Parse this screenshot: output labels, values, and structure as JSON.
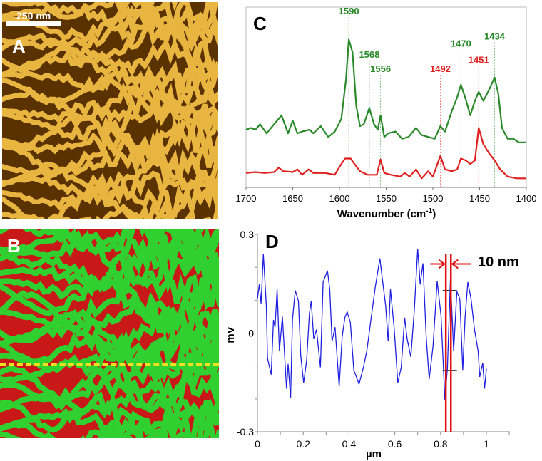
{
  "panel_a": {
    "label": "A",
    "scale_bar": "250 nm"
  },
  "panel_b": {
    "label": "B"
  },
  "colors": {
    "afm_dark": "#3a1f00",
    "afm_light": "#f5d27a",
    "map_red": "#d01818",
    "map_green": "#30d030",
    "dash": "#f0e020",
    "green_series": "#2a8a2a",
    "red_series": "#e02020",
    "profile": "#2020e0"
  },
  "chart_data": [
    {
      "panel": "C",
      "type": "line",
      "xlabel": "Wavenumber (cm-1)",
      "xlabel_base": "Wavenumber (cm",
      "xlabel_sup": "-1",
      "xlabel_end": ")",
      "xlim": [
        1700,
        1400
      ],
      "ylim": [
        0,
        1
      ],
      "xticks": [
        1700,
        1650,
        1600,
        1550,
        1500,
        1450,
        1400
      ],
      "series": [
        {
          "name": "green",
          "color": "#2a8a2a",
          "x": [
            1700,
            1695,
            1690,
            1685,
            1678,
            1670,
            1662,
            1655,
            1650,
            1645,
            1640,
            1632,
            1628,
            1620,
            1612,
            1605,
            1598,
            1593,
            1590,
            1586,
            1582,
            1578,
            1574,
            1568,
            1563,
            1559,
            1556,
            1552,
            1548,
            1540,
            1533,
            1526,
            1518,
            1512,
            1505,
            1498,
            1492,
            1487,
            1480,
            1474,
            1470,
            1465,
            1460,
            1455,
            1451,
            1446,
            1440,
            1434,
            1430,
            1426,
            1420,
            1414,
            1408,
            1400
          ],
          "y": [
            0.32,
            0.33,
            0.32,
            0.35,
            0.3,
            0.35,
            0.4,
            0.3,
            0.37,
            0.3,
            0.31,
            0.32,
            0.3,
            0.34,
            0.28,
            0.31,
            0.38,
            0.6,
            0.82,
            0.75,
            0.45,
            0.34,
            0.35,
            0.44,
            0.35,
            0.32,
            0.4,
            0.28,
            0.3,
            0.31,
            0.27,
            0.28,
            0.33,
            0.29,
            0.28,
            0.27,
            0.34,
            0.31,
            0.42,
            0.5,
            0.57,
            0.49,
            0.4,
            0.48,
            0.53,
            0.48,
            0.54,
            0.61,
            0.52,
            0.33,
            0.27,
            0.27,
            0.25,
            0.25
          ]
        },
        {
          "name": "red",
          "color": "#e02020",
          "x": [
            1700,
            1690,
            1680,
            1670,
            1665,
            1660,
            1650,
            1645,
            1640,
            1633,
            1628,
            1615,
            1605,
            1598,
            1594,
            1588,
            1584,
            1578,
            1570,
            1560,
            1556,
            1552,
            1545,
            1535,
            1530,
            1525,
            1518,
            1512,
            1505,
            1500,
            1492,
            1487,
            1480,
            1474,
            1470,
            1465,
            1460,
            1455,
            1451,
            1446,
            1440,
            1434,
            1428,
            1420,
            1410,
            1400
          ],
          "y": [
            0.08,
            0.085,
            0.08,
            0.085,
            0.11,
            0.09,
            0.085,
            0.1,
            0.07,
            0.1,
            0.08,
            0.08,
            0.07,
            0.13,
            0.16,
            0.16,
            0.13,
            0.09,
            0.07,
            0.07,
            0.155,
            0.08,
            0.07,
            0.06,
            0.08,
            0.06,
            0.1,
            0.05,
            0.09,
            0.06,
            0.175,
            0.1,
            0.09,
            0.1,
            0.16,
            0.15,
            0.13,
            0.15,
            0.33,
            0.24,
            0.19,
            0.15,
            0.1,
            0.06,
            0.05,
            0.05
          ]
        }
      ],
      "annotations": [
        {
          "text": "1590",
          "x": 1590,
          "color": "#2a8a2a",
          "level": 0.96
        },
        {
          "text": "1568",
          "x": 1568,
          "color": "#2a8a2a",
          "level": 0.72
        },
        {
          "text": "1556",
          "x": 1556,
          "color": "#2a8a2a",
          "level": 0.64
        },
        {
          "text": "1492",
          "x": 1492,
          "color": "#e02020",
          "level": 0.64
        },
        {
          "text": "1470",
          "x": 1470,
          "color": "#2a8a2a",
          "level": 0.78
        },
        {
          "text": "1451",
          "x": 1451,
          "color": "#e02020",
          "level": 0.69
        },
        {
          "text": "1434",
          "x": 1434,
          "color": "#2a8a2a",
          "level": 0.82
        }
      ]
    },
    {
      "panel": "D",
      "type": "line",
      "xlabel": "µm",
      "ylabel": "mV",
      "xlim": [
        0,
        1
      ],
      "ylim": [
        -0.3,
        0.3
      ],
      "xticks": [
        "0",
        "0.2",
        "0.4",
        "0.6",
        "0.8",
        "1"
      ],
      "xtick_values": [
        0,
        0.2,
        0.4,
        0.6,
        0.8,
        1
      ],
      "yticks": [
        "0.3",
        "0",
        "-0.3"
      ],
      "ytick_values": [
        0.3,
        0,
        -0.3
      ],
      "series": [
        {
          "name": "profile",
          "color": "#2020e0",
          "x": [
            0,
            0.008,
            0.016,
            0.026,
            0.031,
            0.039,
            0.044,
            0.06,
            0.07,
            0.077,
            0.086,
            0.096,
            0.109,
            0.127,
            0.134,
            0.145,
            0.153,
            0.165,
            0.179,
            0.189,
            0.202,
            0.215,
            0.227,
            0.235,
            0.246,
            0.258,
            0.275,
            0.287,
            0.306,
            0.316,
            0.326,
            0.339,
            0.357,
            0.37,
            0.382,
            0.392,
            0.406,
            0.421,
            0.444,
            0.463,
            0.478,
            0.494,
            0.514,
            0.535,
            0.545,
            0.56,
            0.571,
            0.581,
            0.597,
            0.613,
            0.628,
            0.643,
            0.654,
            0.67,
            0.685,
            0.7,
            0.711,
            0.723,
            0.737,
            0.75,
            0.767,
            0.785,
            0.802,
            0.819,
            0.83,
            0.843,
            0.857,
            0.871,
            0.884,
            0.897,
            0.907,
            0.919,
            0.933,
            0.948,
            0.964,
            0.971,
            0.984,
            0.992,
            1.0
          ],
          "y": [
            0.105,
            0.148,
            0.09,
            0.24,
            0.176,
            0.083,
            -0.076,
            -0.126,
            0.04,
            0.018,
            0.133,
            -0.054,
            0.05,
            -0.169,
            -0.094,
            -0.198,
            0.04,
            0.13,
            0.097,
            -0.068,
            -0.151,
            -0.083,
            0.061,
            0.097,
            -0.018,
            0.011,
            -0.104,
            0.155,
            0.19,
            0.133,
            -0.025,
            0.018,
            -0.162,
            -0.011,
            0.047,
            0.065,
            0.032,
            -0.112,
            -0.155,
            -0.104,
            -0.054,
            0.032,
            0.137,
            0.227,
            0.169,
            0.083,
            -0.025,
            0.133,
            0.018,
            -0.151,
            -0.104,
            0.047,
            -0.018,
            -0.072,
            0.068,
            0.256,
            0.148,
            0.212,
            -0.011,
            -0.14,
            -0.04,
            0.158,
            0.054,
            -0.205,
            -0.104,
            0.166,
            -0.054,
            0.126,
            0.104,
            -0.112,
            0.047,
            0.155,
            0.104,
            0.011,
            -0.054,
            -0.133,
            -0.09,
            -0.169,
            -0.108
          ]
        }
      ],
      "markers": {
        "lines_x": [
          0.823,
          0.845
        ],
        "crosshair_y": [
          0.13,
          -0.113
        ],
        "crosshair_x": 0.84
      },
      "annotation": "10 nm"
    }
  ]
}
